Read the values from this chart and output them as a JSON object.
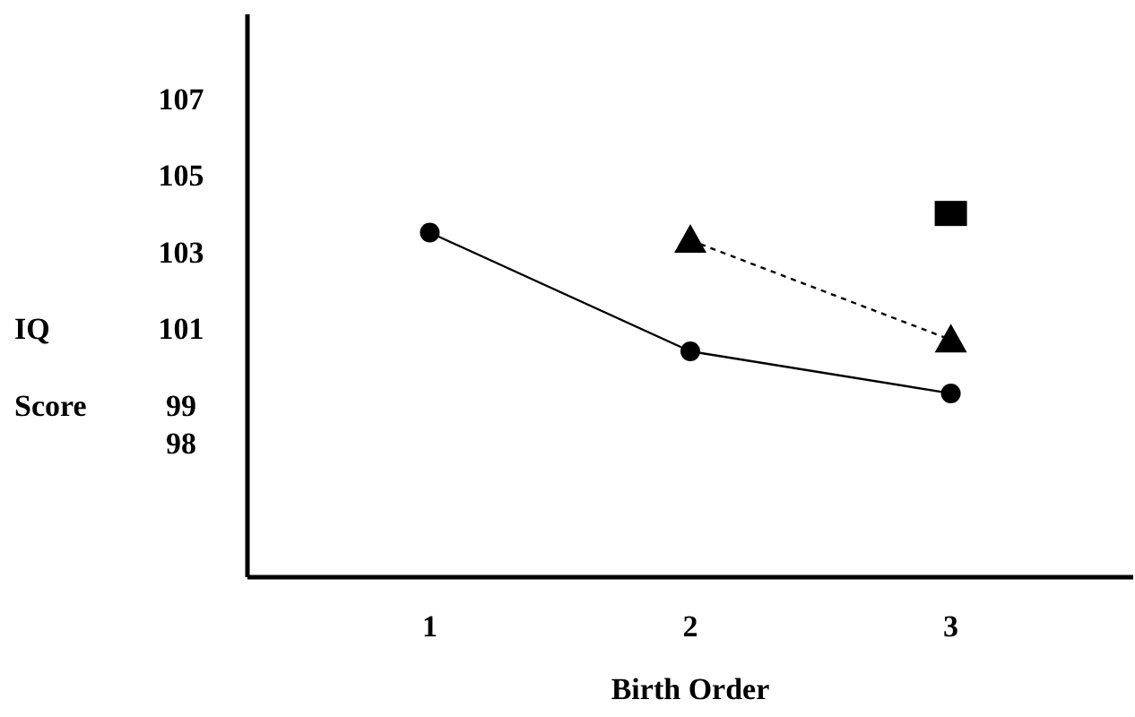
{
  "chart_data": {
    "type": "line",
    "xlabel": "Birth Order",
    "ylabel": "IQ Score",
    "categories": [
      "1",
      "2",
      "3"
    ],
    "ylim": [
      94.5,
      109.2
    ],
    "yticks": [
      98,
      99,
      101,
      103,
      105,
      107
    ],
    "grid": false,
    "series": [
      {
        "color": "#000000",
        "marker": "circle",
        "line_style": "solid",
        "values": [
          103.5,
          100.4,
          99.3
        ]
      },
      {
        "type": "line",
        "color": "#000000",
        "marker": "triangle",
        "line_style": "dotted",
        "values": [
          null,
          103.3,
          100.7
        ]
      },
      {
        "type": "scatter",
        "color": "#000000",
        "marker": "square",
        "values": [
          null,
          null,
          104.0
        ]
      }
    ]
  }
}
